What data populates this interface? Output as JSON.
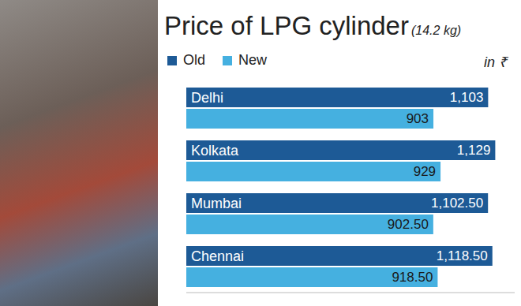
{
  "chart_data": {
    "type": "bar",
    "title": "Price of LPG cylinder",
    "subtitle": "(14.2 kg)",
    "unit_label": "in ₹",
    "orientation": "horizontal",
    "data_labels": true,
    "tick_labels": false,
    "grid": false,
    "legend": "top left",
    "categories": [
      "Delhi",
      "Kolkata",
      "Mumbai",
      "Chennai"
    ],
    "xlim": [
      0,
      1200
    ],
    "series": [
      {
        "name": "Old",
        "color": "#1d5a96",
        "values": [
          1103,
          1129,
          1102.5,
          1118.5
        ],
        "value_labels": [
          "1,103",
          "1,129",
          "1,102.50",
          "1,118.50"
        ]
      },
      {
        "name": "New",
        "color": "#45b0e0",
        "values": [
          903,
          929,
          902.5,
          918.5
        ],
        "value_labels": [
          "903",
          "929",
          "902.50",
          "918.50"
        ]
      }
    ]
  }
}
